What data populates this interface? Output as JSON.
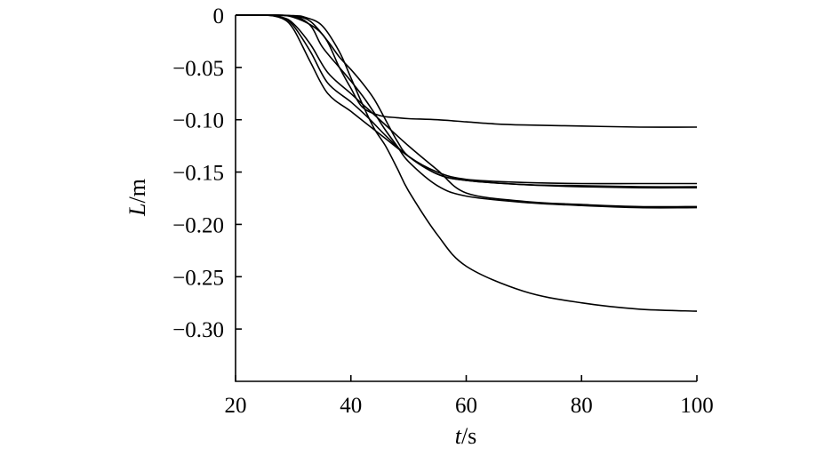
{
  "chart_data": {
    "type": "line",
    "xlabel": {
      "var": "t",
      "unit": "/s"
    },
    "ylabel": {
      "var": "L",
      "unit": "/m"
    },
    "xlim": [
      20,
      100
    ],
    "ylim": [
      -0.35,
      0
    ],
    "x_ticks": [
      20,
      40,
      60,
      80,
      100
    ],
    "x_tick_labels": [
      "20",
      "40",
      "60",
      "80",
      "100"
    ],
    "y_ticks": [
      0,
      -0.05,
      -0.1,
      -0.15,
      -0.2,
      -0.25,
      -0.3
    ],
    "y_tick_labels": [
      "0",
      "−0.05",
      "−0.10",
      "−0.15",
      "−0.20",
      "−0.25",
      "−0.30"
    ],
    "grid": false,
    "series": [
      {
        "x": [
          20,
          25,
          30,
          35,
          38,
          40,
          42,
          45,
          48,
          50,
          55,
          60,
          65,
          70,
          80,
          90,
          100
        ],
        "y": [
          0,
          0,
          -0.002,
          -0.018,
          -0.05,
          -0.07,
          -0.088,
          -0.096,
          -0.098,
          -0.099,
          -0.1,
          -0.102,
          -0.104,
          -0.105,
          -0.106,
          -0.107,
          -0.107
        ]
      },
      {
        "x": [
          20,
          25,
          30,
          32,
          35,
          38,
          40,
          42,
          44,
          46,
          48,
          50,
          55,
          60,
          70,
          80,
          90,
          100
        ],
        "y": [
          0,
          0,
          -0.0005,
          -0.002,
          -0.01,
          -0.035,
          -0.06,
          -0.085,
          -0.108,
          -0.125,
          -0.146,
          -0.168,
          -0.21,
          -0.24,
          -0.264,
          -0.275,
          -0.281,
          -0.283
        ]
      },
      {
        "x": [
          20,
          25,
          28,
          30,
          33,
          36,
          40,
          43,
          46,
          50,
          55,
          60,
          70,
          80,
          90,
          100
        ],
        "y": [
          0,
          0,
          -0.002,
          -0.01,
          -0.035,
          -0.065,
          -0.083,
          -0.098,
          -0.115,
          -0.135,
          -0.15,
          -0.157,
          -0.16,
          -0.161,
          -0.161,
          -0.161
        ]
      },
      {
        "x": [
          20,
          25,
          28,
          30,
          33,
          36,
          40,
          43,
          46,
          50,
          55,
          60,
          70,
          80,
          90,
          100
        ],
        "y": [
          0,
          0,
          -0.003,
          -0.013,
          -0.045,
          -0.075,
          -0.092,
          -0.105,
          -0.118,
          -0.135,
          -0.152,
          -0.158,
          -0.162,
          -0.164,
          -0.165,
          -0.165
        ]
      },
      {
        "x": [
          20,
          25,
          28,
          30,
          33,
          36,
          40,
          43,
          46,
          50,
          55,
          60,
          70,
          80,
          90,
          100
        ],
        "y": [
          0,
          0,
          -0.002,
          -0.008,
          -0.028,
          -0.055,
          -0.075,
          -0.09,
          -0.105,
          -0.125,
          -0.148,
          -0.17,
          -0.178,
          -0.181,
          -0.183,
          -0.183
        ]
      },
      {
        "x": [
          20,
          25,
          30,
          33,
          36,
          38,
          40,
          42,
          44,
          46,
          48,
          50,
          55,
          60,
          70,
          80,
          90,
          100
        ],
        "y": [
          0,
          0,
          -0.001,
          -0.006,
          -0.025,
          -0.04,
          -0.052,
          -0.065,
          -0.08,
          -0.1,
          -0.12,
          -0.135,
          -0.152,
          -0.158,
          -0.162,
          -0.163,
          -0.164,
          -0.164
        ]
      },
      {
        "x": [
          20,
          25,
          30,
          33,
          35,
          38,
          40,
          42,
          44,
          46,
          48,
          50,
          55,
          60,
          70,
          80,
          90,
          100
        ],
        "y": [
          0,
          0,
          -0.001,
          -0.01,
          -0.03,
          -0.05,
          -0.063,
          -0.077,
          -0.093,
          -0.11,
          -0.125,
          -0.14,
          -0.163,
          -0.173,
          -0.179,
          -0.182,
          -0.184,
          -0.184
        ]
      }
    ]
  }
}
